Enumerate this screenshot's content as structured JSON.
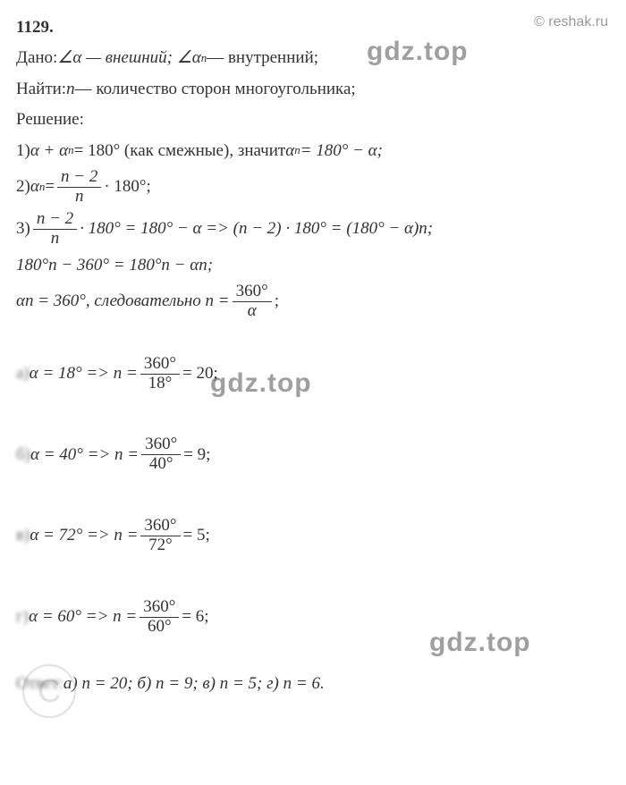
{
  "title": "1129.",
  "watermarks": {
    "reshak": "© reshak.ru",
    "gdz": "gdz.top",
    "c": "C"
  },
  "given_label": "Дано: ",
  "given_text1": "∠α — внешний;  ∠α",
  "given_text2": " — внутренний;",
  "find_label": "Найти: ",
  "find_text": " — количество сторон многоугольника;",
  "find_var": "n",
  "solution_label": "Решение:",
  "step1_a": "1) ",
  "step1_b": "α + α",
  "step1_c": " = 180° (как смежные), значит ",
  "step1_d": "α",
  "step1_e": " = 180° − α;",
  "step2_a": "2) ",
  "step2_b": "α",
  "step2_c": " = ",
  "step2_d": " · 180°;",
  "frac_n2": "n − 2",
  "frac_n": "n",
  "step3_a": "3) ",
  "step3_b": " · 180° = 180° − α => (n − 2) · 180° = (180° − α)n;",
  "step3_line2": "180°n − 360° = 180°n − αn;",
  "step3_line3a": "αn = 360°, следовательно n = ",
  "step3_line3b": " ;",
  "frac_360": "360°",
  "frac_alpha": "α",
  "case_a_label": "а) ",
  "case_a_eq": "α = 18° =>   n = ",
  "case_a_res": " = 20;",
  "case_a_den": "18°",
  "case_b_label": "б) ",
  "case_b_eq": "α = 40° =>   n = ",
  "case_b_res": " = 9;",
  "case_b_den": "40°",
  "case_c_label": "в) ",
  "case_c_eq": "α = 72° =>   n = ",
  "case_c_res": " = 5;",
  "case_c_den": "72°",
  "case_d_label": "г) ",
  "case_d_eq": "α = 60° =>   n = ",
  "case_d_res": " = 6;",
  "case_d_den": "60°",
  "answer_label": "Ответ: ",
  "answer_text": "а) n = 20; б) n = 9; в) n = 5; г) n = 6.",
  "sub_n": "n"
}
